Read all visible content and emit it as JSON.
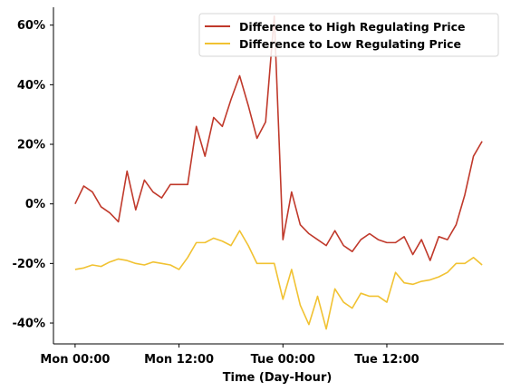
{
  "chart_data": {
    "type": "line",
    "title": "",
    "xlabel": "Time (Day-Hour)",
    "ylabel": "",
    "x_unit": "hours",
    "xlim": [
      -2.5,
      49.5
    ],
    "ylim": [
      -47,
      66
    ],
    "x_ticks": [
      {
        "x": 0,
        "label": "Mon 00:00"
      },
      {
        "x": 12,
        "label": "Mon 12:00"
      },
      {
        "x": 24,
        "label": "Tue 00:00"
      },
      {
        "x": 36,
        "label": "Tue 12:00"
      }
    ],
    "y_ticks": [
      {
        "y": 60,
        "label": "60%"
      },
      {
        "y": 40,
        "label": "40%"
      },
      {
        "y": 20,
        "label": "20%"
      },
      {
        "y": 0,
        "label": "0%"
      },
      {
        "y": -20,
        "label": "-20%"
      },
      {
        "y": -40,
        "label": "-40%"
      }
    ],
    "grid": false,
    "legend_position": "top-right",
    "x": [
      0,
      1,
      2,
      3,
      4,
      5,
      6,
      7,
      8,
      9,
      10,
      11,
      12,
      13,
      14,
      15,
      16,
      17,
      18,
      19,
      20,
      21,
      22,
      23,
      24,
      25,
      26,
      27,
      28,
      29,
      30,
      31,
      32,
      33,
      34,
      35,
      36,
      37,
      38,
      39,
      40,
      41,
      42,
      43,
      44,
      45,
      46,
      47
    ],
    "series": [
      {
        "name": "Difference to High Regulating Price",
        "color": "#c0392b",
        "values": [
          0,
          6,
          4,
          -1,
          -3,
          -6,
          11,
          -2,
          8,
          4,
          2,
          6.5,
          6.5,
          6.5,
          26,
          16,
          29,
          26,
          35,
          43,
          33,
          22,
          27.5,
          63,
          -12,
          4,
          -7,
          -10,
          -12,
          -14,
          -9,
          -14,
          -16,
          -12,
          -10,
          -12,
          -13,
          -13,
          -11,
          -17,
          -12,
          -19,
          -11,
          -12,
          -7,
          3,
          16,
          21
        ]
      },
      {
        "name": "Difference to Low Regulating Price",
        "color": "#f1c232",
        "values": [
          -22,
          -21.5,
          -20.5,
          -21,
          -19.5,
          -18.5,
          -19,
          -20,
          -20.5,
          -19.5,
          -20,
          -20.5,
          -22,
          -18,
          -13,
          -13,
          -11.5,
          -12.5,
          -14,
          -9,
          -14,
          -20,
          -20,
          -20,
          -32,
          -22,
          -34,
          -40.5,
          -31,
          -42,
          -28.5,
          -33,
          -35,
          -30,
          -31,
          -31,
          -33,
          -23,
          -26.5,
          -27,
          -26,
          -25.5,
          -24.5,
          -23,
          -20,
          -20,
          -18,
          -20.5
        ]
      }
    ]
  }
}
